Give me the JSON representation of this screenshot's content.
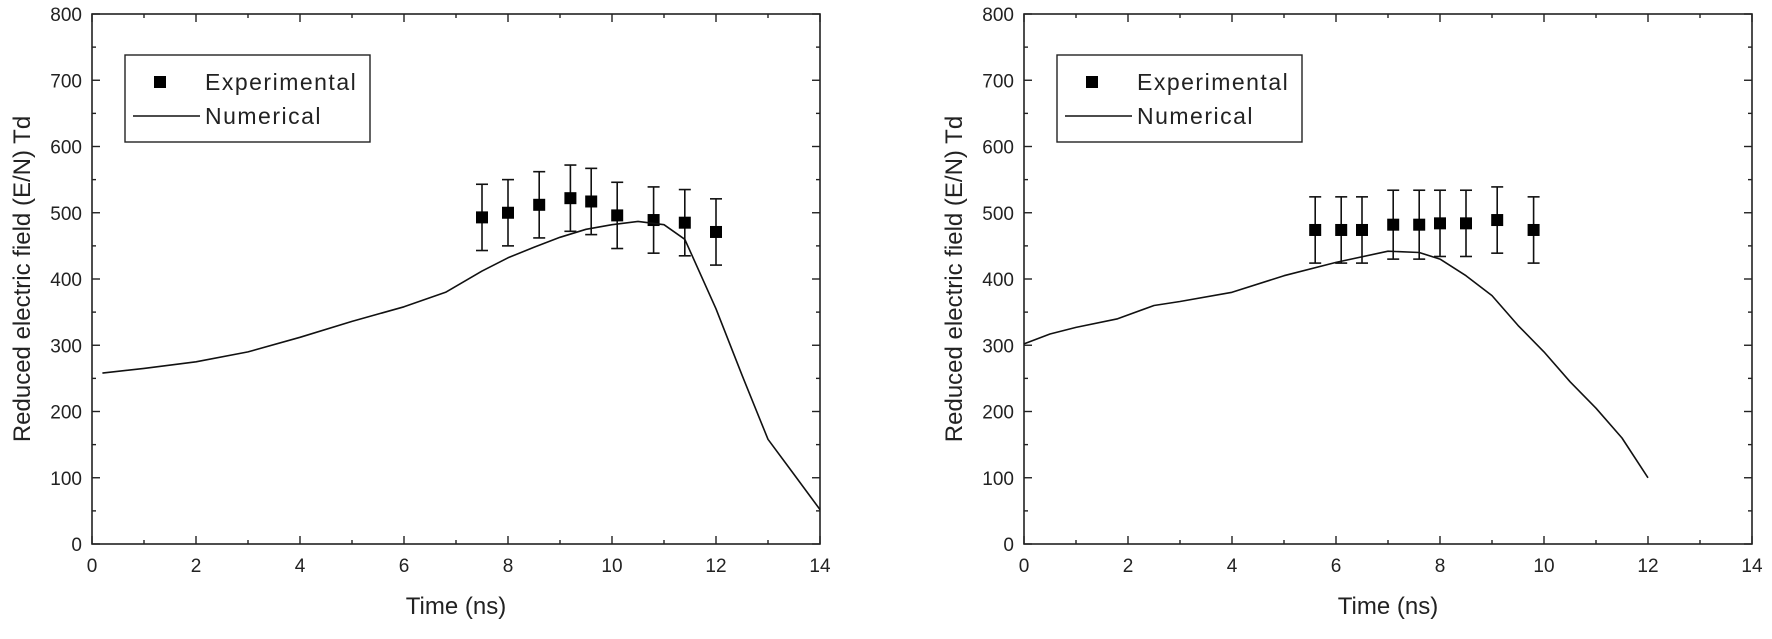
{
  "chart_data": [
    {
      "type": "scatter",
      "title": "",
      "xlabel": "Time (ns)",
      "ylabel": "Reduced electric field (E/N) Td",
      "xlim": [
        0,
        14
      ],
      "ylim": [
        0,
        800
      ],
      "xticks": [
        0,
        2,
        4,
        6,
        8,
        10,
        12,
        14
      ],
      "yticks": [
        0,
        100,
        200,
        300,
        400,
        500,
        600,
        700,
        800
      ],
      "legend": {
        "placement": "top-left",
        "entries": [
          "Experimental",
          "Numerical"
        ]
      },
      "series": [
        {
          "name": "Experimental",
          "kind": "scatter-with-error",
          "x": [
            7.5,
            8.0,
            8.6,
            9.2,
            9.6,
            10.1,
            10.8,
            11.4,
            12.0
          ],
          "y": [
            493,
            500,
            512,
            522,
            517,
            496,
            489,
            485,
            471
          ],
          "err": [
            50,
            50,
            50,
            50,
            50,
            50,
            50,
            50,
            50
          ]
        },
        {
          "name": "Numerical",
          "kind": "line",
          "x": [
            0.2,
            1,
            2,
            3,
            4,
            5,
            6,
            6.8,
            7.5,
            8,
            8.5,
            9,
            9.5,
            10,
            10.5,
            11,
            11.4,
            12,
            12.5,
            13,
            13.5,
            14
          ],
          "y": [
            258,
            265,
            275,
            290,
            312,
            336,
            358,
            380,
            412,
            432,
            448,
            463,
            475,
            482,
            487,
            482,
            460,
            355,
            255,
            158,
            105,
            52
          ]
        }
      ]
    },
    {
      "type": "scatter",
      "title": "",
      "xlabel": "Time (ns)",
      "ylabel": "Reduced electric field (E/N) Td",
      "xlim": [
        0,
        14
      ],
      "ylim": [
        0,
        800
      ],
      "xticks": [
        0,
        2,
        4,
        6,
        8,
        10,
        12,
        14
      ],
      "yticks": [
        0,
        100,
        200,
        300,
        400,
        500,
        600,
        700,
        800
      ],
      "legend": {
        "placement": "top-left",
        "entries": [
          "Experimental",
          "Numerical"
        ]
      },
      "series": [
        {
          "name": "Experimental",
          "kind": "scatter-with-error",
          "x": [
            5.6,
            6.1,
            6.5,
            7.1,
            7.6,
            8.0,
            8.5,
            9.1,
            9.8
          ],
          "y": [
            474,
            474,
            474,
            482,
            482,
            484,
            484,
            489,
            474
          ],
          "err": [
            50,
            50,
            50,
            52,
            52,
            50,
            50,
            50,
            50
          ]
        },
        {
          "name": "Numerical",
          "kind": "line",
          "x": [
            0,
            0.5,
            1,
            1.8,
            2.5,
            3,
            4,
            5,
            6,
            7,
            7.6,
            8,
            8.5,
            9,
            9.5,
            10,
            10.5,
            11,
            11.5,
            12
          ],
          "y": [
            302,
            317,
            327,
            340,
            360,
            366,
            380,
            405,
            425,
            442,
            440,
            430,
            405,
            375,
            330,
            290,
            245,
            205,
            160,
            100
          ]
        }
      ]
    }
  ]
}
